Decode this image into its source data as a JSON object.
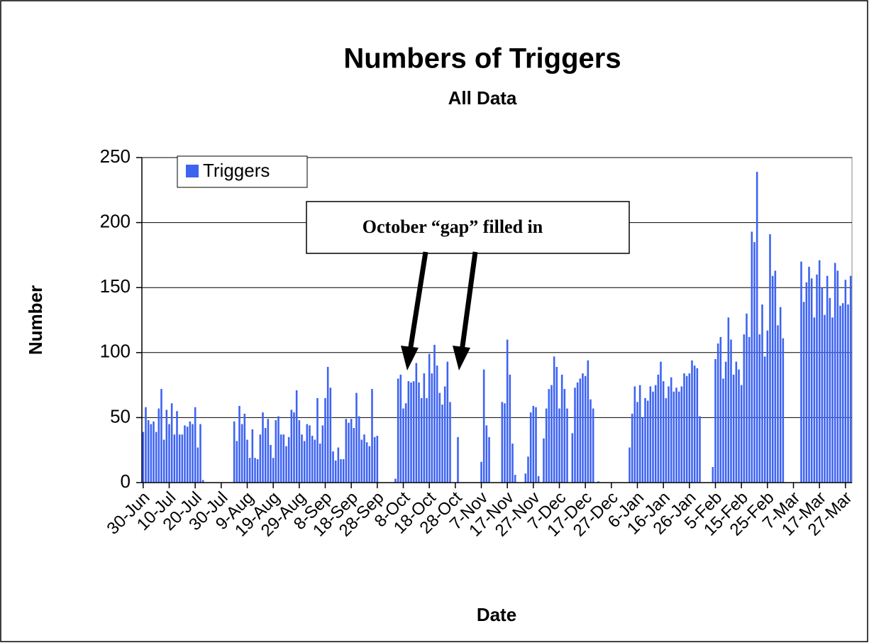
{
  "chart_data": {
    "type": "bar",
    "title": "Numbers of Triggers",
    "subtitle": "All Data",
    "x_label": "Date",
    "y_label": "Number",
    "annotation": "October “gap” filled in",
    "ylim": [
      0,
      250
    ],
    "yticks": [
      0,
      50,
      100,
      150,
      200,
      250
    ],
    "grid": true,
    "legend": "top-left",
    "categories": [
      "30-Jun",
      null,
      null,
      null,
      null,
      null,
      null,
      null,
      null,
      null,
      "10-Jul",
      null,
      null,
      null,
      null,
      null,
      null,
      null,
      null,
      null,
      "20-Jul",
      null,
      null,
      null,
      null,
      null,
      null,
      null,
      null,
      null,
      "30-Jul",
      null,
      null,
      null,
      null,
      null,
      null,
      null,
      null,
      null,
      "9-Aug",
      null,
      null,
      null,
      null,
      null,
      null,
      null,
      null,
      null,
      "19-Aug",
      null,
      null,
      null,
      null,
      null,
      null,
      null,
      null,
      null,
      "29-Aug",
      null,
      null,
      null,
      null,
      null,
      null,
      null,
      null,
      null,
      "8-Sep",
      null,
      null,
      null,
      null,
      null,
      null,
      null,
      null,
      null,
      "18-Sep",
      null,
      null,
      null,
      null,
      null,
      null,
      null,
      null,
      null,
      "28-Sep",
      null,
      null,
      null,
      null,
      null,
      null,
      null,
      null,
      null,
      "8-Oct",
      null,
      null,
      null,
      null,
      null,
      null,
      null,
      null,
      null,
      "18-Oct",
      null,
      null,
      null,
      null,
      null,
      null,
      null,
      null,
      null,
      "28-Oct",
      null,
      null,
      null,
      null,
      null,
      null,
      null,
      null,
      null,
      "7-Nov",
      null,
      null,
      null,
      null,
      null,
      null,
      null,
      null,
      null,
      "17-Nov",
      null,
      null,
      null,
      null,
      null,
      null,
      null,
      null,
      null,
      "27-Nov",
      null,
      null,
      null,
      null,
      null,
      null,
      null,
      null,
      null,
      "7-Dec",
      null,
      null,
      null,
      null,
      null,
      null,
      null,
      null,
      null,
      "17-Dec",
      null,
      null,
      null,
      null,
      null,
      null,
      null,
      null,
      null,
      "27-Dec",
      null,
      null,
      null,
      null,
      null,
      null,
      null,
      null,
      null,
      "6-Jan",
      null,
      null,
      null,
      null,
      null,
      null,
      null,
      null,
      null,
      "16-Jan",
      null,
      null,
      null,
      null,
      null,
      null,
      null,
      null,
      null,
      "26-Jan",
      null,
      null,
      null,
      null,
      null,
      null,
      null,
      null,
      null,
      "5-Feb",
      null,
      null,
      null,
      null,
      null,
      null,
      null,
      null,
      null,
      "15-Feb",
      null,
      null,
      null,
      null,
      null,
      null,
      null,
      null,
      null,
      "25-Feb",
      null,
      null,
      null,
      null,
      null,
      null,
      null,
      null,
      null,
      "7-Mar",
      null,
      null,
      null,
      null,
      null,
      null,
      null,
      null,
      null,
      "17-Mar",
      null,
      null,
      null,
      null,
      null,
      null,
      null,
      null,
      null,
      "27-Mar",
      null,
      null
    ],
    "series": [
      {
        "name": "Triggers",
        "color": "#3d63f2",
        "values": [
          39,
          58,
          48,
          45,
          47,
          39,
          57,
          72,
          33,
          56,
          45,
          61,
          37,
          55,
          37,
          37,
          44,
          43,
          47,
          45,
          58,
          27,
          45,
          2,
          0,
          0,
          0,
          0,
          0,
          0,
          0,
          0,
          0,
          0,
          0,
          47,
          32,
          59,
          45,
          53,
          33,
          19,
          41,
          19,
          18,
          37,
          54,
          42,
          49,
          29,
          19,
          48,
          51,
          37,
          37,
          28,
          35,
          56,
          54,
          71,
          48,
          37,
          32,
          45,
          44,
          36,
          33,
          65,
          30,
          44,
          65,
          89,
          73,
          24,
          17,
          27,
          18,
          18,
          49,
          46,
          49,
          42,
          69,
          51,
          33,
          37,
          31,
          28,
          72,
          35,
          36,
          0,
          0,
          0,
          0,
          0,
          0,
          3,
          80,
          83,
          57,
          61,
          78,
          77,
          78,
          92,
          77,
          65,
          84,
          65,
          99,
          84,
          106,
          90,
          69,
          60,
          74,
          93,
          62,
          0,
          0,
          35,
          0,
          0,
          0,
          0,
          0,
          0,
          0,
          0,
          16,
          87,
          44,
          35,
          0,
          0,
          0,
          0,
          62,
          61,
          110,
          83,
          30,
          6,
          0,
          0,
          0,
          7,
          20,
          54,
          59,
          58,
          5,
          0,
          34,
          57,
          72,
          75,
          97,
          89,
          57,
          83,
          72,
          57,
          0,
          38,
          73,
          77,
          80,
          84,
          82,
          94,
          64,
          57,
          0,
          1,
          0,
          0,
          0,
          0,
          0,
          0,
          0,
          0,
          0,
          0,
          0,
          27,
          53,
          74,
          62,
          75,
          50,
          65,
          63,
          74,
          70,
          75,
          83,
          93,
          78,
          65,
          74,
          81,
          70,
          73,
          70,
          74,
          84,
          82,
          84,
          94,
          90,
          88,
          51,
          0,
          0,
          0,
          0,
          12,
          95,
          107,
          112,
          80,
          93,
          127,
          110,
          83,
          93,
          87,
          75,
          114,
          130,
          112,
          193,
          185,
          239,
          114,
          137,
          97,
          117,
          191,
          159,
          163,
          121,
          135,
          111,
          0,
          0,
          0,
          0,
          0,
          0,
          170,
          139,
          154,
          166,
          157,
          127,
          160,
          171,
          150,
          129,
          159,
          142,
          127,
          169,
          163,
          136,
          138,
          156,
          137,
          159
        ]
      }
    ]
  }
}
